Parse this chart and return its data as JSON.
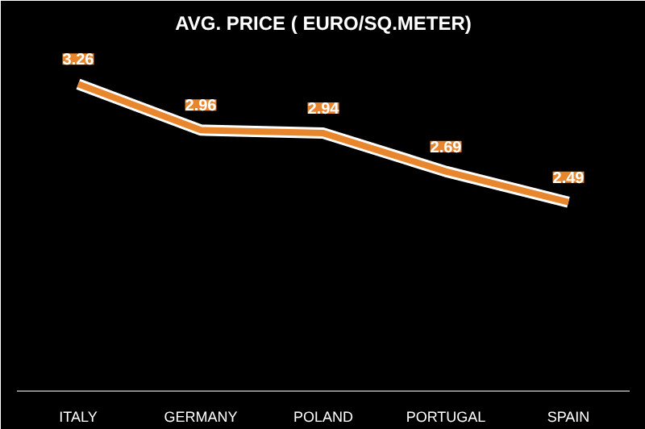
{
  "chart_data": {
    "type": "line",
    "title": "AVG. PRICE ( EURO/SQ.METER)",
    "categories": [
      "ITALY",
      "GERMANY",
      "POLAND",
      "PORTUGAL",
      "SPAIN"
    ],
    "values": [
      3.26,
      2.96,
      2.94,
      2.69,
      2.49
    ],
    "color": "#e8862e",
    "data_labels": true,
    "grid": false,
    "marker": "none",
    "line_style": "solid"
  }
}
